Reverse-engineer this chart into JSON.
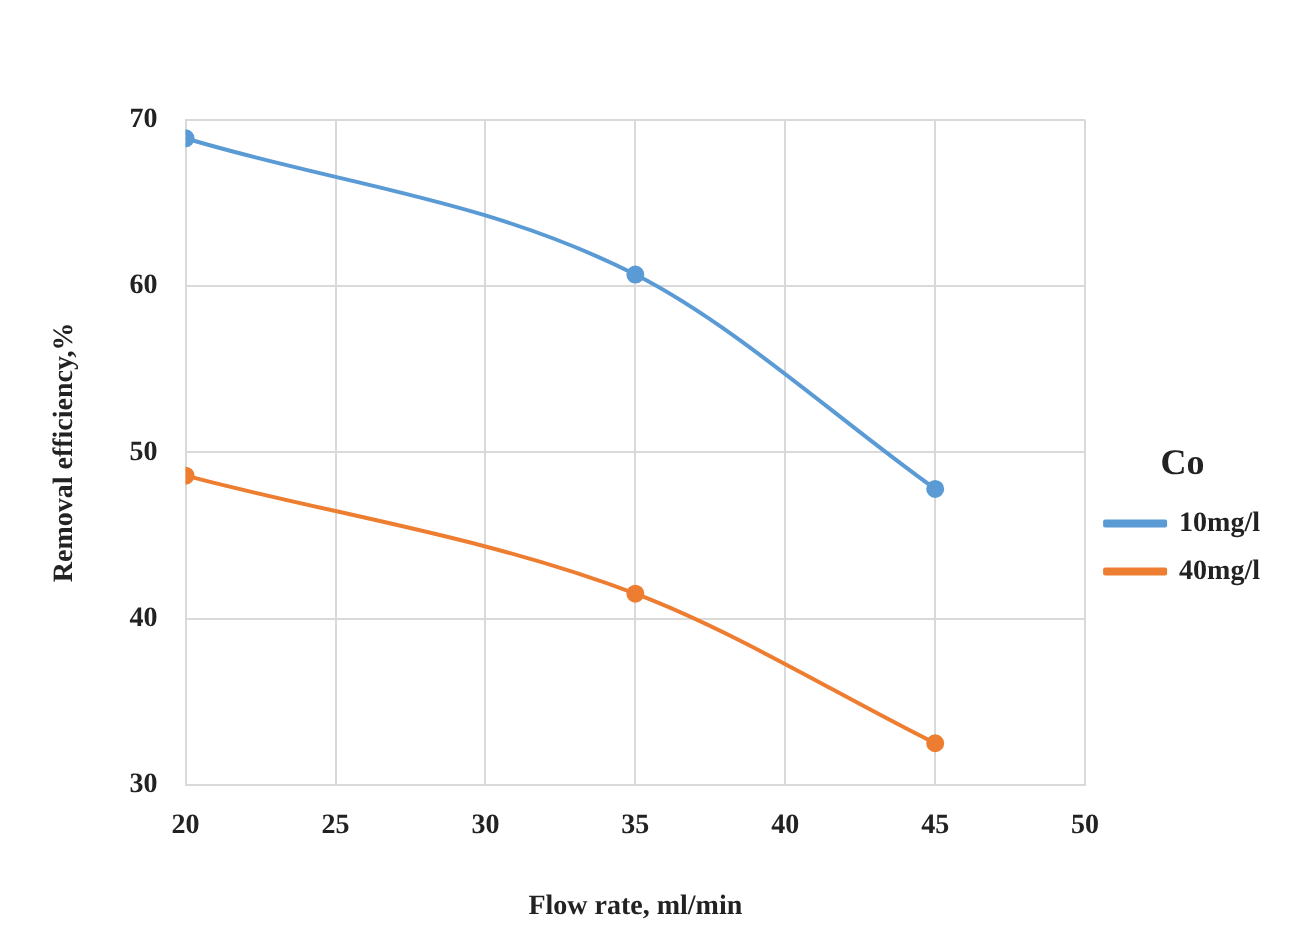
{
  "chart_data": {
    "type": "line",
    "xlabel": "Flow rate, ml/min",
    "ylabel": "Removal efficiency,%",
    "legend_title": "Co",
    "x": [
      20,
      35,
      45
    ],
    "series": [
      {
        "name": "10mg/l",
        "color": "#5b9bd5",
        "values": [
          68.9,
          60.7,
          47.8
        ]
      },
      {
        "name": "40mg/l",
        "color": "#ed7d31",
        "values": [
          48.6,
          41.5,
          32.5
        ]
      }
    ],
    "xlim": [
      20,
      50
    ],
    "xticks": [
      20,
      25,
      30,
      35,
      40,
      45,
      50
    ],
    "ylim": [
      30,
      70
    ],
    "yticks": [
      30,
      40,
      50,
      60,
      70
    ],
    "grid": true,
    "legend": "right",
    "marker": "circle",
    "line_style": "solid"
  }
}
